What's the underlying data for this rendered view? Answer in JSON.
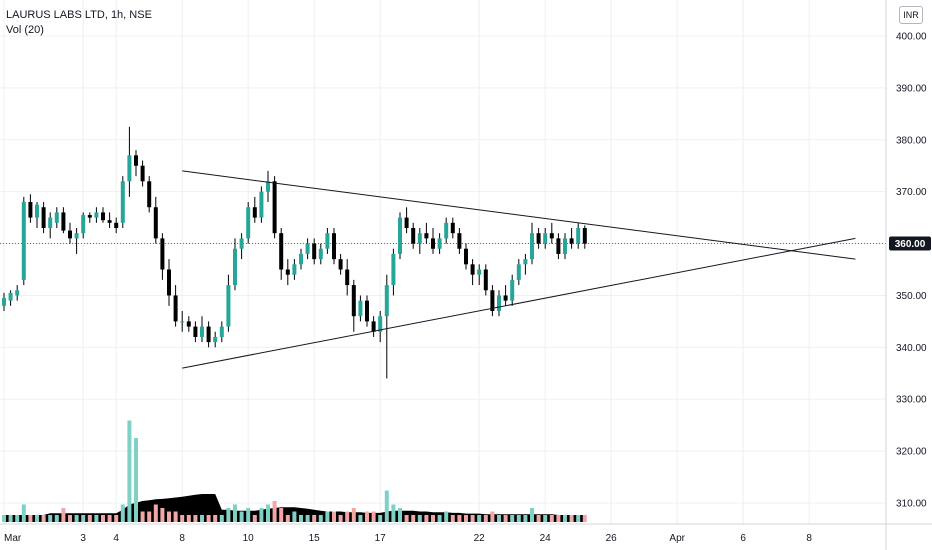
{
  "legend": {
    "symbol_line": "LAURUS LABS LTD, 1h, NSE",
    "indicator_line": "Vol (20)"
  },
  "currency_label": "INR",
  "last_price_label": "360.00",
  "chart_data": {
    "type": "candlestick",
    "title": "LAURUS LABS LTD, 1h, NSE",
    "y_axis": {
      "ticks": [
        310,
        320,
        330,
        340,
        350,
        360,
        370,
        380,
        390,
        400
      ],
      "tick_labels": [
        "310.00",
        "320.00",
        "330.00",
        "340.00",
        "350.00",
        "360.00",
        "370.00",
        "380.00",
        "390.00",
        "400.00"
      ],
      "ylim": [
        305,
        403
      ],
      "position": "right"
    },
    "x_axis": {
      "tick_labels": [
        "Mar",
        "3",
        "4",
        "8",
        "10",
        "15",
        "17",
        "22",
        "24",
        "26",
        "Apr",
        "6",
        "8"
      ],
      "tick_index": [
        0,
        12,
        17,
        27,
        37,
        47,
        57,
        72,
        82,
        92,
        102,
        112,
        122
      ]
    },
    "last_price": 360,
    "candles": [
      [
        348,
        350.5,
        347,
        349.5
      ],
      [
        349,
        351,
        348,
        350.5
      ],
      [
        350,
        352,
        349,
        351
      ],
      [
        353,
        369,
        352,
        368
      ],
      [
        368,
        369.5,
        364,
        365
      ],
      [
        365,
        368,
        363,
        367.5
      ],
      [
        367,
        368,
        362,
        363
      ],
      [
        363,
        366,
        361,
        365
      ],
      [
        364,
        367,
        363,
        366
      ],
      [
        366,
        367,
        362,
        362.5
      ],
      [
        362.5,
        364,
        360,
        361
      ],
      [
        361,
        363,
        358,
        362
      ],
      [
        362,
        366,
        361,
        365.5
      ],
      [
        365.5,
        366,
        364,
        365
      ],
      [
        365,
        367,
        364,
        366
      ],
      [
        366,
        367,
        364,
        364.5
      ],
      [
        364.5,
        366,
        363,
        364
      ],
      [
        364,
        365,
        362,
        363
      ],
      [
        364,
        373,
        363,
        372
      ],
      [
        372,
        382.5,
        369,
        377
      ],
      [
        377,
        378,
        373,
        375
      ],
      [
        375,
        376,
        371,
        372
      ],
      [
        372,
        373,
        366,
        367
      ],
      [
        367,
        369,
        360,
        361
      ],
      [
        361,
        362,
        353,
        355
      ],
      [
        355,
        357,
        348,
        350
      ],
      [
        350,
        352,
        344,
        345
      ],
      [
        345,
        347,
        343,
        345
      ],
      [
        345,
        346,
        343,
        344
      ],
      [
        344,
        345,
        341,
        342
      ],
      [
        342,
        346,
        341,
        344
      ],
      [
        344,
        345,
        340,
        341
      ],
      [
        341,
        343,
        340,
        342
      ],
      [
        342,
        345,
        341,
        344
      ],
      [
        344,
        354,
        343,
        352
      ],
      [
        352,
        361,
        351,
        359
      ],
      [
        359,
        362,
        357,
        361
      ],
      [
        361,
        368,
        360,
        367
      ],
      [
        367,
        369,
        364,
        365
      ],
      [
        365,
        371,
        364,
        370
      ],
      [
        370,
        374,
        368,
        372
      ],
      [
        372,
        373,
        361,
        362
      ],
      [
        362,
        363,
        353,
        355
      ],
      [
        355,
        357,
        352,
        354
      ],
      [
        354,
        357,
        353,
        356
      ],
      [
        356,
        359,
        355,
        358
      ],
      [
        358,
        361,
        357,
        360
      ],
      [
        360,
        361,
        356,
        357
      ],
      [
        357,
        360,
        356,
        359
      ],
      [
        359,
        363,
        358,
        362
      ],
      [
        362,
        363,
        356,
        357
      ],
      [
        357,
        358,
        354,
        355
      ],
      [
        355,
        357,
        350,
        352
      ],
      [
        352,
        353,
        343,
        346
      ],
      [
        346,
        350,
        345,
        349
      ],
      [
        349,
        350,
        344,
        345
      ],
      [
        345,
        346,
        342,
        343
      ],
      [
        343,
        347,
        341,
        346
      ],
      [
        346,
        354,
        334,
        352
      ],
      [
        352,
        359,
        350,
        358
      ],
      [
        358,
        366,
        357,
        365
      ],
      [
        365,
        367,
        362,
        363
      ],
      [
        363,
        364,
        359,
        360
      ],
      [
        360,
        363,
        358,
        362
      ],
      [
        362,
        364,
        360,
        361
      ],
      [
        361,
        363,
        358,
        359
      ],
      [
        359,
        362,
        358,
        361
      ],
      [
        361,
        365,
        360,
        364
      ],
      [
        364,
        365,
        361,
        362
      ],
      [
        362,
        363,
        358,
        359
      ],
      [
        359,
        360,
        355,
        356
      ],
      [
        356,
        357,
        352,
        354
      ],
      [
        354,
        356,
        352,
        355
      ],
      [
        355,
        356,
        350,
        351
      ],
      [
        351,
        352,
        346,
        347
      ],
      [
        347,
        351,
        346,
        350
      ],
      [
        350,
        352,
        348,
        349
      ],
      [
        349,
        354,
        348,
        353
      ],
      [
        353,
        357,
        352,
        356
      ],
      [
        356,
        358,
        354,
        357
      ],
      [
        357,
        364,
        356,
        362
      ],
      [
        362,
        363,
        359,
        360
      ],
      [
        360,
        363,
        359,
        362
      ],
      [
        362,
        364,
        360,
        361
      ],
      [
        361,
        362,
        357,
        358
      ],
      [
        358,
        362,
        357,
        361
      ],
      [
        361,
        363,
        359,
        360
      ],
      [
        360,
        364,
        359,
        363
      ],
      [
        363,
        363.5,
        359,
        360
      ]
    ],
    "volume": [
      [
        2,
        "up"
      ],
      [
        2,
        "up"
      ],
      [
        2,
        "up"
      ],
      [
        5,
        "up"
      ],
      [
        2,
        "down"
      ],
      [
        2,
        "up"
      ],
      [
        2,
        "down"
      ],
      [
        2,
        "up"
      ],
      [
        2,
        "up"
      ],
      [
        4,
        "down"
      ],
      [
        2,
        "down"
      ],
      [
        2,
        "up"
      ],
      [
        2,
        "up"
      ],
      [
        2,
        "down"
      ],
      [
        2,
        "up"
      ],
      [
        2,
        "down"
      ],
      [
        2,
        "down"
      ],
      [
        2,
        "down"
      ],
      [
        5,
        "up"
      ],
      [
        29,
        "up"
      ],
      [
        24,
        "up"
      ],
      [
        3,
        "down"
      ],
      [
        3,
        "down"
      ],
      [
        5,
        "down"
      ],
      [
        4,
        "down"
      ],
      [
        3,
        "down"
      ],
      [
        3,
        "down"
      ],
      [
        2,
        "down"
      ],
      [
        2,
        "down"
      ],
      [
        2,
        "down"
      ],
      [
        2,
        "up"
      ],
      [
        2,
        "down"
      ],
      [
        2,
        "down"
      ],
      [
        2,
        "up"
      ],
      [
        4,
        "up"
      ],
      [
        5,
        "up"
      ],
      [
        3,
        "up"
      ],
      [
        4,
        "up"
      ],
      [
        2,
        "down"
      ],
      [
        4,
        "up"
      ],
      [
        5,
        "up"
      ],
      [
        6,
        "down"
      ],
      [
        4,
        "down"
      ],
      [
        2,
        "down"
      ],
      [
        3,
        "up"
      ],
      [
        2,
        "up"
      ],
      [
        2,
        "up"
      ],
      [
        2,
        "down"
      ],
      [
        2,
        "up"
      ],
      [
        3,
        "up"
      ],
      [
        3,
        "down"
      ],
      [
        2,
        "down"
      ],
      [
        3,
        "down"
      ],
      [
        4,
        "down"
      ],
      [
        2,
        "up"
      ],
      [
        3,
        "down"
      ],
      [
        3,
        "down"
      ],
      [
        2,
        "up"
      ],
      [
        9,
        "up"
      ],
      [
        5,
        "up"
      ],
      [
        4,
        "up"
      ],
      [
        2,
        "down"
      ],
      [
        2,
        "down"
      ],
      [
        2,
        "up"
      ],
      [
        2,
        "down"
      ],
      [
        2,
        "down"
      ],
      [
        2,
        "up"
      ],
      [
        3,
        "up"
      ],
      [
        2,
        "down"
      ],
      [
        2,
        "down"
      ],
      [
        2,
        "down"
      ],
      [
        2,
        "down"
      ],
      [
        2,
        "up"
      ],
      [
        2,
        "down"
      ],
      [
        3,
        "down"
      ],
      [
        2,
        "up"
      ],
      [
        2,
        "down"
      ],
      [
        2,
        "up"
      ],
      [
        2,
        "up"
      ],
      [
        2,
        "up"
      ],
      [
        4,
        "up"
      ],
      [
        2,
        "down"
      ],
      [
        2,
        "up"
      ],
      [
        2,
        "down"
      ],
      [
        2,
        "down"
      ],
      [
        2,
        "up"
      ],
      [
        2,
        "down"
      ],
      [
        2,
        "up"
      ],
      [
        2,
        "down"
      ]
    ],
    "volume_ma": [
      2,
      2,
      2,
      2,
      2,
      2,
      2,
      2.5,
      2.5,
      2.5,
      2.5,
      2.5,
      2.5,
      2.5,
      2.5,
      2.5,
      2.5,
      2.5,
      3.5,
      5,
      5.5,
      6,
      6.2,
      6.5,
      6.6,
      6.8,
      7,
      7.2,
      7.5,
      7.8,
      8,
      8,
      8,
      3.5,
      3.5,
      3.2,
      3.2,
      3.2,
      3.2,
      3.5,
      3.8,
      4,
      4.2,
      4.2,
      4.2,
      4,
      3.8,
      3.5,
      3.2,
      3,
      3,
      3,
      2.8,
      2.8,
      2.8,
      2.6,
      2.6,
      2.6,
      3,
      3.2,
      3.2,
      3.2,
      3.2,
      3,
      3,
      2.8,
      2.8,
      2.8,
      2.6,
      2.6,
      2.4,
      2.4,
      2.4,
      2.2,
      2.2,
      2.2,
      2.2,
      2.2,
      2.2,
      2.2,
      2.2,
      2.2,
      2.2,
      2.2,
      2,
      2,
      2,
      2,
      2
    ],
    "trendlines": [
      {
        "name": "upper",
        "from": [
          27,
          374
        ],
        "to": [
          129,
          357
        ]
      },
      {
        "name": "lower",
        "from": [
          27,
          336
        ],
        "to": [
          129,
          361
        ]
      }
    ],
    "colors": {
      "up": "#26a69a",
      "down": "#000000",
      "wick": "#000000",
      "vol_up": "#7fd1c6",
      "vol_down": "#f3a6a6",
      "vol_ma": "#000000",
      "grid": "#eef0f3",
      "trendline": "#131722"
    }
  }
}
